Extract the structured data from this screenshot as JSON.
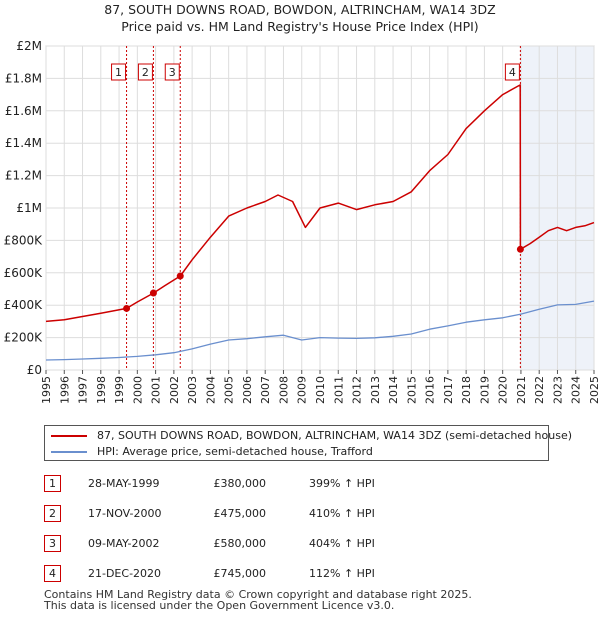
{
  "title_line1": "87, SOUTH DOWNS ROAD, BOWDON, ALTRINCHAM, WA14 3DZ",
  "title_line2": "Price paid vs. HM Land Registry's House Price Index (HPI)",
  "colors": {
    "red": "#cc0000",
    "blue": "#6a8fce",
    "grid": "#dddddd",
    "plot_bg": "#eef2f9"
  },
  "chart_data": {
    "type": "line",
    "xlim": [
      1995,
      2025
    ],
    "ylim": [
      0,
      2000000
    ],
    "yticks": [
      0,
      200000,
      400000,
      600000,
      800000,
      1000000,
      1200000,
      1400000,
      1600000,
      1800000,
      2000000
    ],
    "ytick_labels": [
      "£0",
      "£200K",
      "£400K",
      "£600K",
      "£800K",
      "£1M",
      "£1.2M",
      "£1.4M",
      "£1.6M",
      "£1.8M",
      "£2M"
    ],
    "xticks": [
      "1995",
      "1996",
      "1997",
      "1998",
      "1999",
      "2000",
      "2001",
      "2002",
      "2003",
      "2004",
      "2005",
      "2006",
      "2007",
      "2008",
      "2009",
      "2010",
      "2011",
      "2012",
      "2013",
      "2014",
      "2015",
      "2016",
      "2017",
      "2018",
      "2019",
      "2020",
      "2021",
      "2022",
      "2023",
      "2024",
      "2025"
    ],
    "series": [
      {
        "name": "87, SOUTH DOWNS ROAD, BOWDON, ALTRINCHAM, WA14 3DZ (semi-detached house)",
        "color": "#cc0000",
        "x": [
          1995,
          1996,
          1997,
          1998,
          1999.41,
          2000,
          2000.88,
          2001.5,
          2002.35,
          2003,
          2004,
          2005,
          2006,
          2007,
          2007.7,
          2008.5,
          2009.2,
          2010,
          2011,
          2012,
          2013,
          2014,
          2015,
          2016,
          2017,
          2018,
          2019,
          2020,
          2020.96,
          2020.97,
          2021.5,
          2022,
          2022.5,
          2023,
          2023.5,
          2024,
          2024.5,
          2025
        ],
        "y": [
          300000,
          310000,
          330000,
          350000,
          380000,
          420000,
          475000,
          520000,
          580000,
          680000,
          820000,
          950000,
          1000000,
          1040000,
          1080000,
          1040000,
          880000,
          1000000,
          1030000,
          990000,
          1020000,
          1040000,
          1100000,
          1230000,
          1330000,
          1490000,
          1600000,
          1700000,
          1760000,
          745000,
          780000,
          820000,
          860000,
          880000,
          860000,
          880000,
          890000,
          910000
        ]
      },
      {
        "name": "HPI: Average price, semi-detached house, Trafford",
        "color": "#6a8fce",
        "x": [
          1995,
          1996,
          1997,
          1998,
          1999,
          2000,
          2001,
          2002,
          2003,
          2004,
          2005,
          2006,
          2007,
          2008,
          2009,
          2010,
          2011,
          2012,
          2013,
          2014,
          2015,
          2016,
          2017,
          2018,
          2019,
          2020,
          2021,
          2022,
          2023,
          2024,
          2025
        ],
        "y": [
          62000,
          64000,
          68000,
          72000,
          77000,
          84000,
          94000,
          107000,
          130000,
          160000,
          185000,
          193000,
          205000,
          215000,
          185000,
          200000,
          197000,
          195000,
          199000,
          208000,
          222000,
          252000,
          272000,
          295000,
          310000,
          322000,
          345000,
          375000,
          402000,
          405000,
          425000
        ]
      }
    ],
    "sales": [
      {
        "label": "1",
        "date": "28-MAY-1999",
        "x": 1999.41,
        "price": 380000,
        "price_label": "£380,000",
        "hpi": "399% ↑ HPI"
      },
      {
        "label": "2",
        "date": "17-NOV-2000",
        "x": 2000.88,
        "price": 475000,
        "price_label": "£475,000",
        "hpi": "410% ↑ HPI"
      },
      {
        "label": "3",
        "date": "09-MAY-2002",
        "x": 2002.35,
        "price": 580000,
        "price_label": "£580,000",
        "hpi": "404% ↑ HPI"
      },
      {
        "label": "4",
        "date": "21-DEC-2020",
        "x": 2020.97,
        "price": 745000,
        "price_label": "£745,000",
        "hpi": "112% ↑ HPI"
      }
    ]
  },
  "legend": {
    "red_label": "87, SOUTH DOWNS ROAD, BOWDON, ALTRINCHAM, WA14 3DZ (semi-detached house)",
    "blue_label": "HPI: Average price, semi-detached house, Trafford"
  },
  "footer_line1": "Contains HM Land Registry data © Crown copyright and database right 2025.",
  "footer_line2": "This data is licensed under the Open Government Licence v3.0."
}
